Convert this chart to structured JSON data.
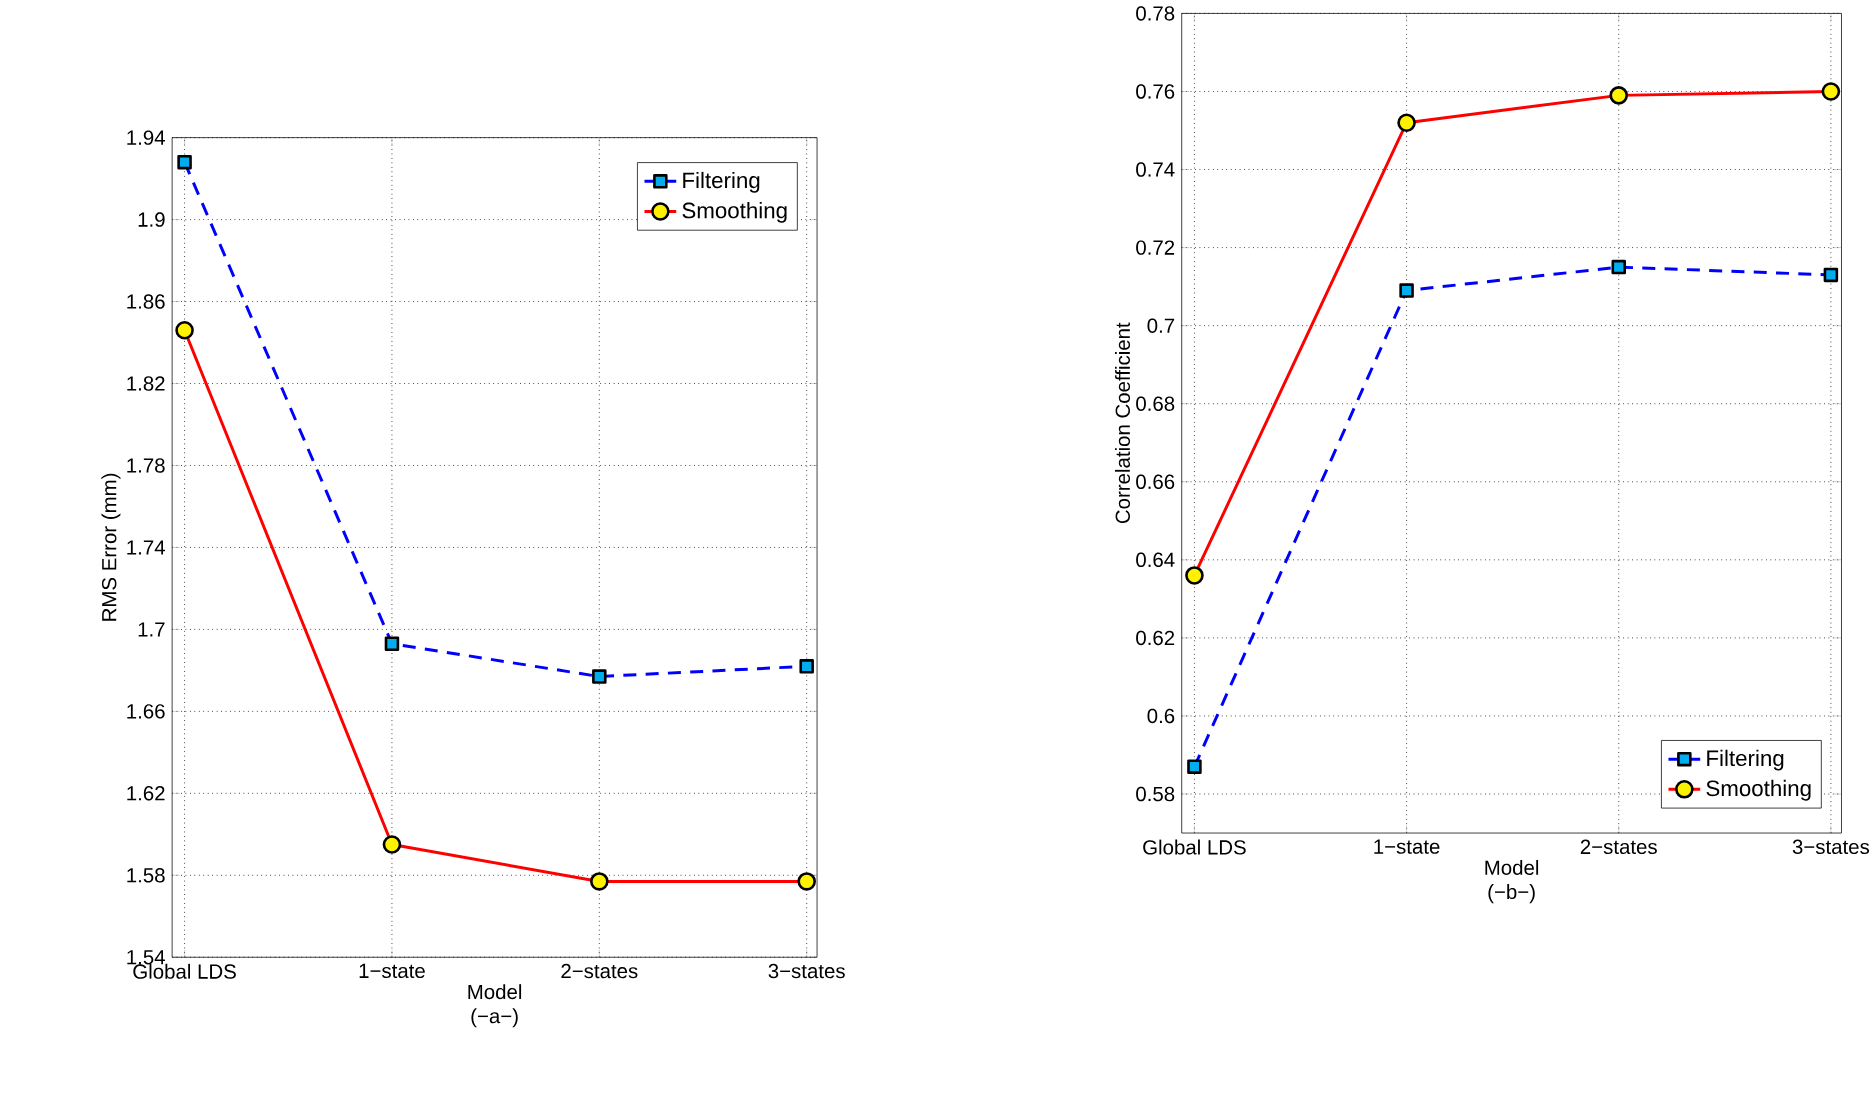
{
  "chart_data": [
    {
      "type": "line",
      "xlabel": "Model",
      "ylabel": "RMS Error (mm)",
      "annotations": [
        "(−a−)"
      ],
      "categories": [
        "Global LDS",
        "1−state",
        "2−states",
        "3−states"
      ],
      "series": [
        {
          "name": "Filtering",
          "color": "#0000ff",
          "marker": "square",
          "line_style": "dashed",
          "values": [
            1.928,
            1.693,
            1.677,
            1.682
          ]
        },
        {
          "name": "Smoothing",
          "color": "#ff0000",
          "marker": "circle",
          "line_style": "solid",
          "values": [
            1.846,
            1.595,
            1.577,
            1.577
          ]
        }
      ],
      "ylim": [
        1.54,
        1.94
      ],
      "yticks": [
        1.54,
        1.58,
        1.62,
        1.66,
        1.7,
        1.74,
        1.78,
        1.82,
        1.86,
        1.9,
        1.94
      ],
      "grid": true,
      "legend": "top right"
    },
    {
      "type": "line",
      "xlabel": "Model",
      "ylabel": "Correlation Coefficient",
      "annotations": [
        "(−b−)"
      ],
      "categories": [
        "Global LDS",
        "1−state",
        "2−states",
        "3−states"
      ],
      "series": [
        {
          "name": "Filtering",
          "color": "#0000ff",
          "marker": "square",
          "line_style": "dashed",
          "values": [
            0.587,
            0.709,
            0.715,
            0.713
          ]
        },
        {
          "name": "Smoothing",
          "color": "#ff0000",
          "marker": "circle",
          "line_style": "solid",
          "values": [
            0.636,
            0.752,
            0.759,
            0.76
          ]
        }
      ],
      "ylim": [
        0.57,
        0.78
      ],
      "yticks": [
        0.58,
        0.6,
        0.62,
        0.64,
        0.66,
        0.68,
        0.7,
        0.72,
        0.74,
        0.76,
        0.78
      ],
      "grid": true,
      "legend": "bottom right"
    }
  ]
}
